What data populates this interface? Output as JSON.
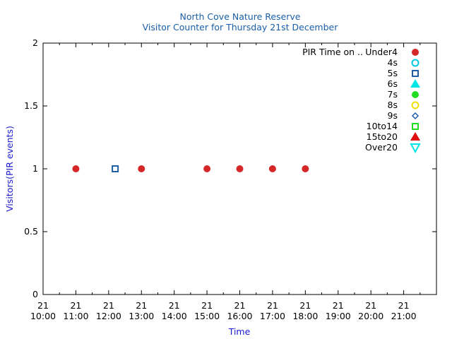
{
  "chart_data": {
    "type": "scatter",
    "title": "North Cove Nature Reserve",
    "subtitle": "Visitor Counter for Thursday 21st December",
    "xlabel": "Time",
    "ylabel": "Visitors(PIR events)",
    "xlim": [
      "21 10:00",
      "21 22:00"
    ],
    "ylim": [
      0,
      2
    ],
    "x_ticks": [
      {
        "day": "21",
        "time": "10:00"
      },
      {
        "day": "21",
        "time": "11:00"
      },
      {
        "day": "21",
        "time": "12:00"
      },
      {
        "day": "21",
        "time": "13:00"
      },
      {
        "day": "21",
        "time": "14:00"
      },
      {
        "day": "21",
        "time": "15:00"
      },
      {
        "day": "21",
        "time": "16:00"
      },
      {
        "day": "21",
        "time": "17:00"
      },
      {
        "day": "21",
        "time": "18:00"
      },
      {
        "day": "21",
        "time": "19:00"
      },
      {
        "day": "21",
        "time": "20:00"
      },
      {
        "day": "21",
        "time": "21:00"
      }
    ],
    "y_ticks": [
      "0",
      "0.5",
      "1",
      "1.5",
      "2"
    ],
    "legend_title": "PIR Time on ..",
    "legend_position": "top-right",
    "series": [
      {
        "name": "Under4",
        "marker": "circle-filled",
        "color": "#d62728",
        "points": [
          {
            "x": "21 11:00",
            "y": 1
          },
          {
            "x": "21 13:00",
            "y": 1
          },
          {
            "x": "21 15:00",
            "y": 1
          },
          {
            "x": "21 16:00",
            "y": 1
          },
          {
            "x": "21 17:00",
            "y": 1
          },
          {
            "x": "21 18:00",
            "y": 1
          }
        ]
      },
      {
        "name": "4s",
        "marker": "circle-open",
        "color": "#00c8e0",
        "points": []
      },
      {
        "name": "5s",
        "marker": "square-open",
        "color": "#1f5fa8",
        "points": [
          {
            "x": "21 12:12",
            "y": 1
          }
        ]
      },
      {
        "name": "6s",
        "marker": "triangle-filled",
        "color": "#00e5e5",
        "points": []
      },
      {
        "name": "7s",
        "marker": "circle-filled",
        "color": "#22dd22",
        "points": []
      },
      {
        "name": "8s",
        "marker": "circle-open",
        "color": "#f0e000",
        "points": []
      },
      {
        "name": "9s",
        "marker": "diamond-open",
        "color": "#1f5fa8",
        "points": []
      },
      {
        "name": "10to14",
        "marker": "square-open",
        "color": "#22dd22",
        "points": []
      },
      {
        "name": "15to20",
        "marker": "triangle-filled",
        "color": "#e01010",
        "points": []
      },
      {
        "name": "Over20",
        "marker": "triangle-down-open",
        "color": "#00e5e5",
        "points": []
      }
    ]
  }
}
